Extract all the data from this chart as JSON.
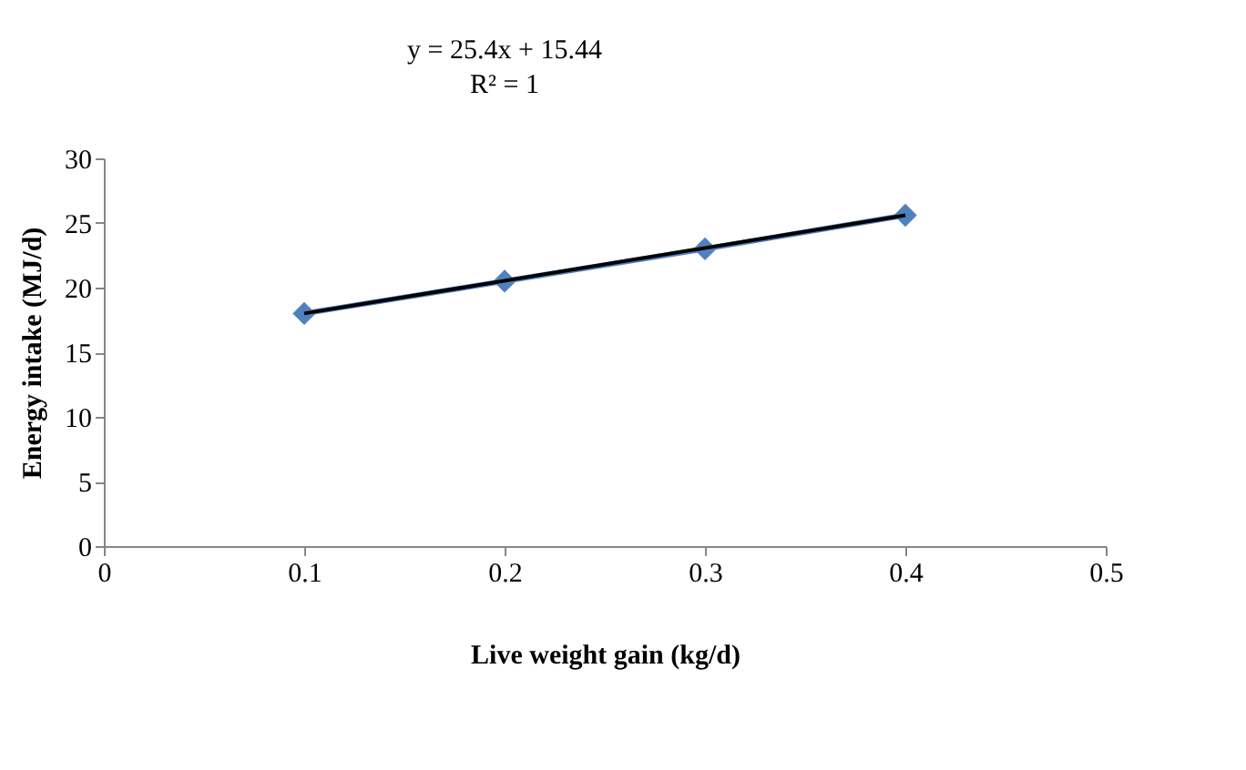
{
  "chart_data": {
    "type": "line",
    "xlabel": "Live weight gain (kg/d)",
    "ylabel": "Energy intake (MJ/d)",
    "x": [
      0.1,
      0.2,
      0.3,
      0.4
    ],
    "series": [
      {
        "color": "#4f81bd",
        "marker": "diamond",
        "values": [
          18,
          20.5,
          23,
          25.6
        ]
      },
      {
        "color": "#000000",
        "marker": "none",
        "x": [
          0.1,
          0.4
        ],
        "values": [
          18,
          25.6
        ]
      }
    ],
    "annotations": [
      "y = 25.4x + 15.44",
      "R² = 1"
    ],
    "xlim": [
      0,
      0.5
    ],
    "xticks": [
      0,
      0.1,
      0.2,
      0.3,
      0.4,
      0.5
    ],
    "ylim": [
      0,
      30
    ],
    "yticks": [
      0,
      5,
      10,
      15,
      20,
      25,
      30
    ],
    "grid": false
  }
}
